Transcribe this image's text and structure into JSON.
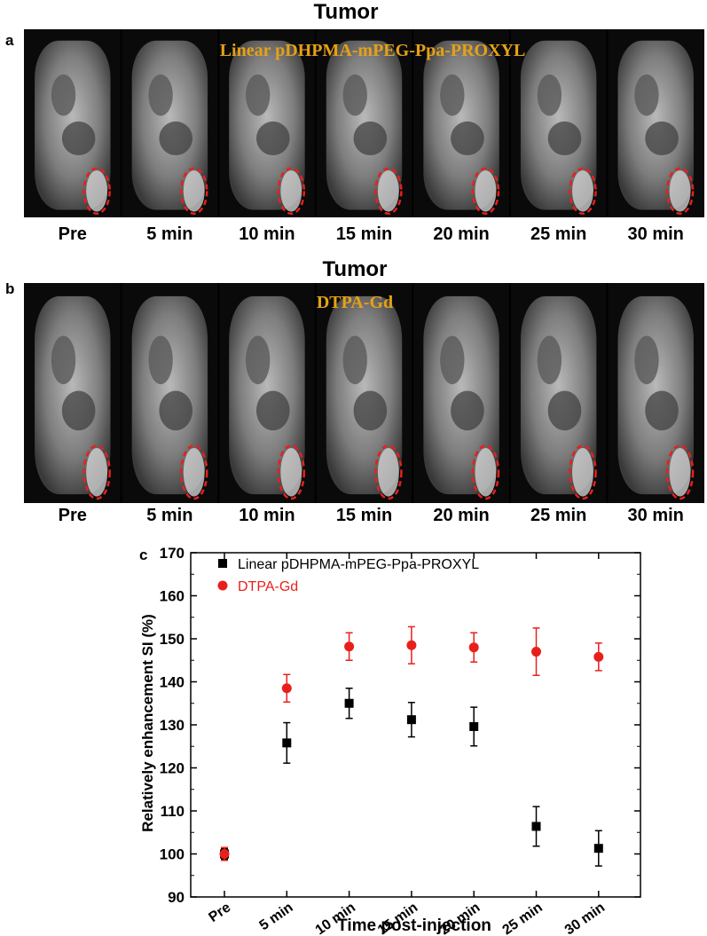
{
  "panel_a": {
    "letter": "a",
    "title": "Tumor",
    "overlay_label": "Linear pDHPMA-mPEG-Ppa-PROXYL",
    "frame_labels": [
      "Pre",
      "5 min",
      "10 min",
      "15 min",
      "20 min",
      "25 min",
      "30 min"
    ]
  },
  "panel_b": {
    "letter": "b",
    "title": "Tumor",
    "overlay_label": "DTPA-Gd",
    "frame_labels": [
      "Pre",
      "5 min",
      "10 min",
      "15 min",
      "20 min",
      "25 min",
      "30 min"
    ]
  },
  "panel_c": {
    "letter": "c"
  },
  "colors": {
    "overlay_text": "#e6a116",
    "tumor_circle": "#e8201c",
    "series_linear": "#000000",
    "series_dtpa": "#e8201c"
  },
  "chart_data": {
    "type": "scatter",
    "categories": [
      "Pre",
      "5 min",
      "10 min",
      "15 min",
      "20 min",
      "25 min",
      "30 min"
    ],
    "xlabel": "Time post-injection",
    "ylabel": "Relatively enhancement SI (%)",
    "ylim": [
      90,
      170
    ],
    "yticks": [
      90,
      100,
      110,
      120,
      130,
      140,
      150,
      160,
      170
    ],
    "grid": false,
    "legend_position": "top-left",
    "series": [
      {
        "name": "Linear pDHPMA-mPEG-Ppa-PROXYL",
        "marker": "square",
        "color": "#000000",
        "values": [
          100,
          125.8,
          135,
          131.2,
          129.6,
          106.4,
          101.3
        ],
        "errors": [
          1.2,
          4.7,
          3.5,
          4.0,
          4.5,
          4.6,
          4.1
        ]
      },
      {
        "name": "DTPA-Gd",
        "marker": "circle",
        "color": "#e8201c",
        "values": [
          100,
          138.5,
          148.2,
          148.5,
          148.0,
          147.0,
          145.8
        ],
        "errors": [
          1.5,
          3.2,
          3.2,
          4.3,
          3.4,
          5.5,
          3.2
        ]
      }
    ]
  }
}
